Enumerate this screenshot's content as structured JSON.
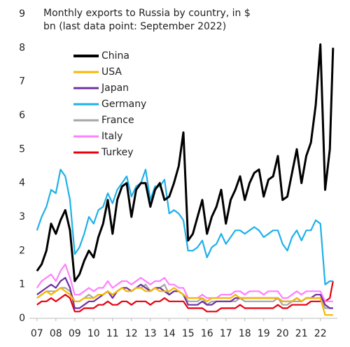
{
  "chart_data": {
    "type": "line",
    "title": "Monthly exports to Russia by country, in $ bn (last data point: September 2022)",
    "x": [
      2007,
      2007.25,
      2007.5,
      2007.75,
      2008,
      2008.25,
      2008.5,
      2008.75,
      2009,
      2009.25,
      2009.5,
      2009.75,
      2010,
      2010.25,
      2010.5,
      2010.75,
      2011,
      2011.25,
      2011.5,
      2011.75,
      2012,
      2012.25,
      2012.5,
      2012.75,
      2013,
      2013.25,
      2013.5,
      2013.75,
      2014,
      2014.25,
      2014.5,
      2014.75,
      2015,
      2015.25,
      2015.5,
      2015.75,
      2016,
      2016.25,
      2016.5,
      2016.75,
      2017,
      2017.25,
      2017.5,
      2017.75,
      2018,
      2018.25,
      2018.5,
      2018.75,
      2019,
      2019.25,
      2019.5,
      2019.75,
      2020,
      2020.25,
      2020.5,
      2020.75,
      2021,
      2021.25,
      2021.5,
      2021.75,
      2022,
      2022.25,
      2022.5,
      2022.67
    ],
    "xlim": [
      2006.6,
      2022.9
    ],
    "xticks": [
      {
        "value": 2007,
        "label": "07"
      },
      {
        "value": 2008,
        "label": "08"
      },
      {
        "value": 2009,
        "label": "09"
      },
      {
        "value": 2010,
        "label": "10"
      },
      {
        "value": 2011,
        "label": "11"
      },
      {
        "value": 2012,
        "label": "12"
      },
      {
        "value": 2013,
        "label": "13"
      },
      {
        "value": 2014,
        "label": "14"
      },
      {
        "value": 2015,
        "label": "15"
      },
      {
        "value": 2016,
        "label": "16"
      },
      {
        "value": 2017,
        "label": "17"
      },
      {
        "value": 2018,
        "label": "18"
      },
      {
        "value": 2019,
        "label": "19"
      },
      {
        "value": 2020,
        "label": "20"
      },
      {
        "value": 2021,
        "label": "21"
      },
      {
        "value": 2022,
        "label": "22"
      }
    ],
    "ylim": [
      0,
      9
    ],
    "yticks": [
      0,
      1,
      2,
      3,
      4,
      5,
      6,
      7,
      8,
      9
    ],
    "grid": false,
    "legend": "upper left",
    "series": [
      {
        "name": "China",
        "color": "#000000",
        "values": [
          1.4,
          1.6,
          2.0,
          2.8,
          2.5,
          2.9,
          3.2,
          2.6,
          1.1,
          1.3,
          1.7,
          2.0,
          1.8,
          2.4,
          2.8,
          3.5,
          2.5,
          3.5,
          3.9,
          4.0,
          3.0,
          3.8,
          4.0,
          4.0,
          3.3,
          3.8,
          4.0,
          3.5,
          3.6,
          4.0,
          4.5,
          5.5,
          2.3,
          2.5,
          3.0,
          3.5,
          2.5,
          3.0,
          3.3,
          3.8,
          2.8,
          3.5,
          3.8,
          4.2,
          3.5,
          4.0,
          4.3,
          4.4,
          3.6,
          4.1,
          4.2,
          4.8,
          3.5,
          3.6,
          4.3,
          5.0,
          4.0,
          4.8,
          5.2,
          6.3,
          8.1,
          3.8,
          5.0,
          8.0
        ]
      },
      {
        "name": "USA",
        "color": "#f5b800",
        "values": [
          0.6,
          0.7,
          0.8,
          0.7,
          0.8,
          0.9,
          0.8,
          0.7,
          0.5,
          0.5,
          0.6,
          0.6,
          0.6,
          0.7,
          0.7,
          0.8,
          0.7,
          0.8,
          0.9,
          0.8,
          0.8,
          0.9,
          0.9,
          0.8,
          0.8,
          0.9,
          0.8,
          0.8,
          0.8,
          0.9,
          0.8,
          0.7,
          0.6,
          0.6,
          0.6,
          0.6,
          0.5,
          0.6,
          0.6,
          0.6,
          0.6,
          0.6,
          0.7,
          0.6,
          0.6,
          0.6,
          0.6,
          0.6,
          0.6,
          0.6,
          0.6,
          0.6,
          0.5,
          0.5,
          0.5,
          0.6,
          0.5,
          0.6,
          0.6,
          0.6,
          0.6,
          0.1,
          0.1,
          0.1
        ]
      },
      {
        "name": "Japan",
        "color": "#7030a0",
        "values": [
          0.7,
          0.8,
          0.9,
          1.0,
          0.9,
          1.1,
          1.2,
          0.9,
          0.3,
          0.3,
          0.4,
          0.5,
          0.5,
          0.6,
          0.7,
          0.8,
          0.6,
          0.8,
          0.9,
          0.9,
          0.8,
          0.9,
          1.0,
          0.9,
          0.8,
          0.9,
          0.9,
          0.8,
          0.7,
          0.8,
          0.8,
          0.7,
          0.4,
          0.4,
          0.4,
          0.5,
          0.4,
          0.4,
          0.5,
          0.5,
          0.5,
          0.5,
          0.6,
          0.6,
          0.6,
          0.6,
          0.6,
          0.6,
          0.6,
          0.6,
          0.6,
          0.6,
          0.5,
          0.5,
          0.5,
          0.6,
          0.5,
          0.6,
          0.6,
          0.7,
          0.7,
          0.4,
          0.3,
          0.3
        ]
      },
      {
        "name": "Germany",
        "color": "#1fb0e8",
        "values": [
          2.6,
          3.0,
          3.3,
          3.8,
          3.7,
          4.4,
          4.2,
          3.5,
          1.9,
          2.1,
          2.5,
          3.0,
          2.8,
          3.2,
          3.3,
          3.7,
          3.4,
          3.8,
          4.0,
          4.2,
          3.6,
          3.9,
          4.0,
          4.4,
          3.5,
          3.9,
          3.9,
          4.1,
          3.1,
          3.2,
          3.1,
          2.9,
          2.0,
          2.0,
          2.1,
          2.3,
          1.8,
          2.1,
          2.2,
          2.5,
          2.2,
          2.4,
          2.6,
          2.6,
          2.5,
          2.6,
          2.7,
          2.6,
          2.4,
          2.5,
          2.6,
          2.6,
          2.2,
          2.0,
          2.4,
          2.6,
          2.3,
          2.6,
          2.6,
          2.9,
          2.8,
          1.0,
          1.1,
          1.1
        ]
      },
      {
        "name": "France",
        "color": "#a6a6a6",
        "values": [
          0.6,
          0.7,
          0.8,
          0.8,
          0.8,
          0.9,
          0.9,
          0.8,
          0.5,
          0.5,
          0.6,
          0.7,
          0.6,
          0.7,
          0.7,
          0.8,
          0.7,
          0.8,
          0.9,
          0.8,
          0.8,
          0.9,
          0.9,
          1.0,
          0.8,
          0.9,
          0.9,
          1.0,
          0.7,
          0.8,
          0.8,
          0.7,
          0.5,
          0.5,
          0.5,
          0.6,
          0.4,
          0.5,
          0.5,
          0.5,
          0.5,
          0.5,
          0.5,
          0.6,
          0.5,
          0.5,
          0.5,
          0.5,
          0.5,
          0.5,
          0.5,
          0.6,
          0.4,
          0.4,
          0.5,
          0.5,
          0.5,
          0.6,
          0.6,
          0.6,
          0.6,
          0.3,
          0.3,
          0.3
        ]
      },
      {
        "name": "Italy",
        "color": "#ff80ff",
        "values": [
          0.9,
          1.1,
          1.2,
          1.3,
          1.1,
          1.4,
          1.6,
          1.2,
          0.7,
          0.7,
          0.8,
          0.9,
          0.8,
          0.9,
          0.9,
          1.1,
          0.9,
          1.0,
          1.1,
          1.1,
          1.0,
          1.1,
          1.2,
          1.1,
          1.0,
          1.1,
          1.1,
          1.2,
          1.0,
          1.0,
          0.9,
          0.9,
          0.6,
          0.6,
          0.6,
          0.7,
          0.6,
          0.6,
          0.6,
          0.7,
          0.7,
          0.7,
          0.8,
          0.8,
          0.7,
          0.8,
          0.8,
          0.8,
          0.7,
          0.8,
          0.8,
          0.8,
          0.6,
          0.6,
          0.7,
          0.8,
          0.7,
          0.8,
          0.8,
          0.8,
          0.8,
          0.5,
          0.5,
          0.5
        ]
      },
      {
        "name": "Turkey",
        "color": "#e8000f",
        "values": [
          0.4,
          0.5,
          0.5,
          0.6,
          0.5,
          0.6,
          0.7,
          0.6,
          0.2,
          0.2,
          0.3,
          0.3,
          0.3,
          0.4,
          0.4,
          0.5,
          0.4,
          0.4,
          0.5,
          0.5,
          0.4,
          0.5,
          0.5,
          0.5,
          0.4,
          0.5,
          0.5,
          0.6,
          0.5,
          0.5,
          0.5,
          0.5,
          0.3,
          0.3,
          0.3,
          0.3,
          0.2,
          0.2,
          0.2,
          0.3,
          0.3,
          0.3,
          0.3,
          0.4,
          0.3,
          0.3,
          0.3,
          0.3,
          0.3,
          0.3,
          0.3,
          0.4,
          0.3,
          0.3,
          0.4,
          0.4,
          0.4,
          0.4,
          0.5,
          0.5,
          0.5,
          0.5,
          0.6,
          1.1
        ]
      }
    ]
  }
}
